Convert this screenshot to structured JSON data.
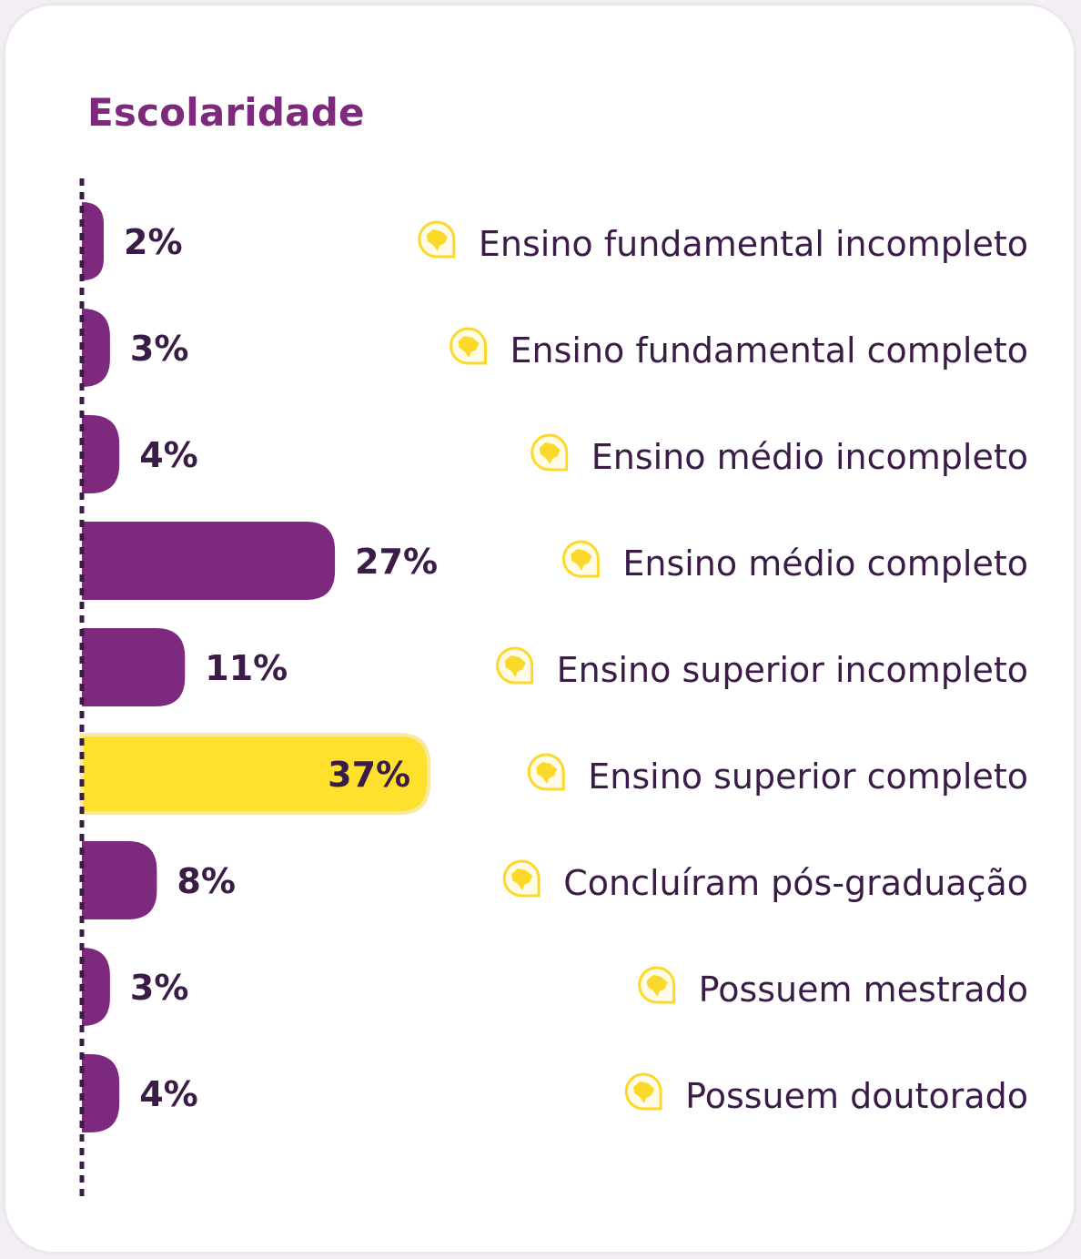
{
  "chart_data": {
    "type": "bar",
    "orientation": "horizontal",
    "title": "Escolaridade",
    "categories": [
      "Ensino fundamental incompleto",
      "Ensino fundamental completo",
      "Ensino médio incompleto",
      "Ensino médio completo",
      "Ensino superior incompleto",
      "Ensino superior completo",
      "Concluíram pós-graduação",
      "Possuem mestrado",
      "Possuem doutorado"
    ],
    "values": [
      2,
      3,
      4,
      27,
      11,
      37,
      8,
      3,
      4
    ],
    "value_labels": [
      "2%",
      "3%",
      "4%",
      "27%",
      "11%",
      "37%",
      "8%",
      "3%",
      "4%"
    ],
    "highlight_index": 5,
    "category_icon": "brazil-map-pin-icon",
    "grid": false,
    "legend": "none"
  },
  "colors": {
    "bar": "#7d2a7e",
    "highlight_bar": "#fde12c",
    "highlight_border": "#f7e9a3",
    "axis": "#3b1c47",
    "text": "#3b1c47",
    "title": "#7d2a7e",
    "icon": "#fbd92b"
  }
}
